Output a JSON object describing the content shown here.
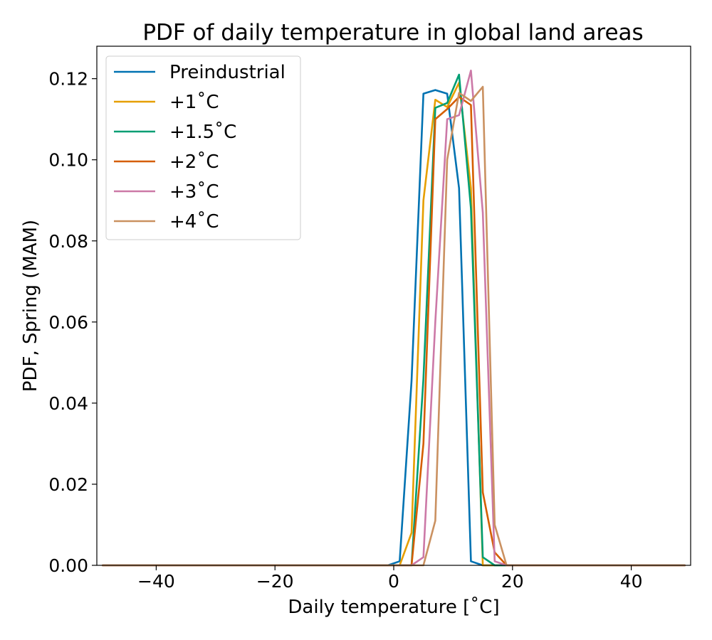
{
  "chart_data": {
    "type": "line",
    "title": "PDF of daily temperature in global land areas",
    "xlabel": "Daily temperature [˚C]",
    "ylabel": "PDF, Spring (MAM)",
    "xlim": [
      -50,
      50
    ],
    "ylim": [
      0,
      0.128
    ],
    "xticks": [
      -40,
      -20,
      0,
      20,
      40
    ],
    "xtick_labels": [
      "−40",
      "−20",
      "0",
      "20",
      "40"
    ],
    "yticks": [
      0,
      0.02,
      0.04,
      0.06,
      0.08,
      0.1,
      0.12
    ],
    "ytick_labels": [
      "0.00",
      "0.02",
      "0.04",
      "0.06",
      "0.08",
      "0.10",
      "0.12"
    ],
    "grid": false,
    "legend_position": "top-left",
    "x": [
      -49,
      -47,
      -45,
      -43,
      -41,
      -39,
      -37,
      -35,
      -33,
      -31,
      -29,
      -27,
      -25,
      -23,
      -21,
      -19,
      -17,
      -15,
      -13,
      -11,
      -9,
      -7,
      -5,
      -3,
      -1,
      1,
      3,
      5,
      7,
      9,
      11,
      13,
      15,
      17,
      19,
      21,
      23,
      25,
      27,
      29,
      31,
      33,
      35,
      37,
      39,
      41,
      43,
      45,
      47,
      49
    ],
    "series": [
      {
        "name": "Preindustrial",
        "color": "#0072b2",
        "segment": {
          "start": 1,
          "values": [
            0.001,
            0.0455,
            0.1163,
            0.1172,
            0.1163,
            0.093,
            0.001,
            0.0
          ]
        }
      },
      {
        "name": "+1˚C",
        "color": "#e69f00",
        "segment": {
          "start": 1,
          "values": [
            0.0,
            0.008,
            0.09,
            0.1148,
            0.113,
            0.119,
            0.093,
            0.0
          ]
        }
      },
      {
        "name": "+1.5˚C",
        "color": "#009e73",
        "segment": {
          "start": 3,
          "values": [
            0.0,
            0.046,
            0.1128,
            0.114,
            0.121,
            0.088,
            0.002,
            0.0
          ]
        }
      },
      {
        "name": "+2˚C",
        "color": "#d55e00",
        "segment": {
          "start": 3,
          "values": [
            0.0,
            0.03,
            0.11,
            0.1125,
            0.1155,
            0.1135,
            0.018,
            0.0032,
            0.0
          ]
        }
      },
      {
        "name": "+3˚C",
        "color": "#cc79a7",
        "segment": {
          "start": 3,
          "values": [
            0.0,
            0.002,
            0.06,
            0.11,
            0.111,
            0.122,
            0.087,
            0.001,
            0.0
          ]
        }
      },
      {
        "name": "+4˚C",
        "color": "#ca9161",
        "segment": {
          "start": 5,
          "values": [
            0.0,
            0.011,
            0.1,
            0.1165,
            0.1145,
            0.118,
            0.01,
            0.0
          ]
        }
      }
    ]
  }
}
